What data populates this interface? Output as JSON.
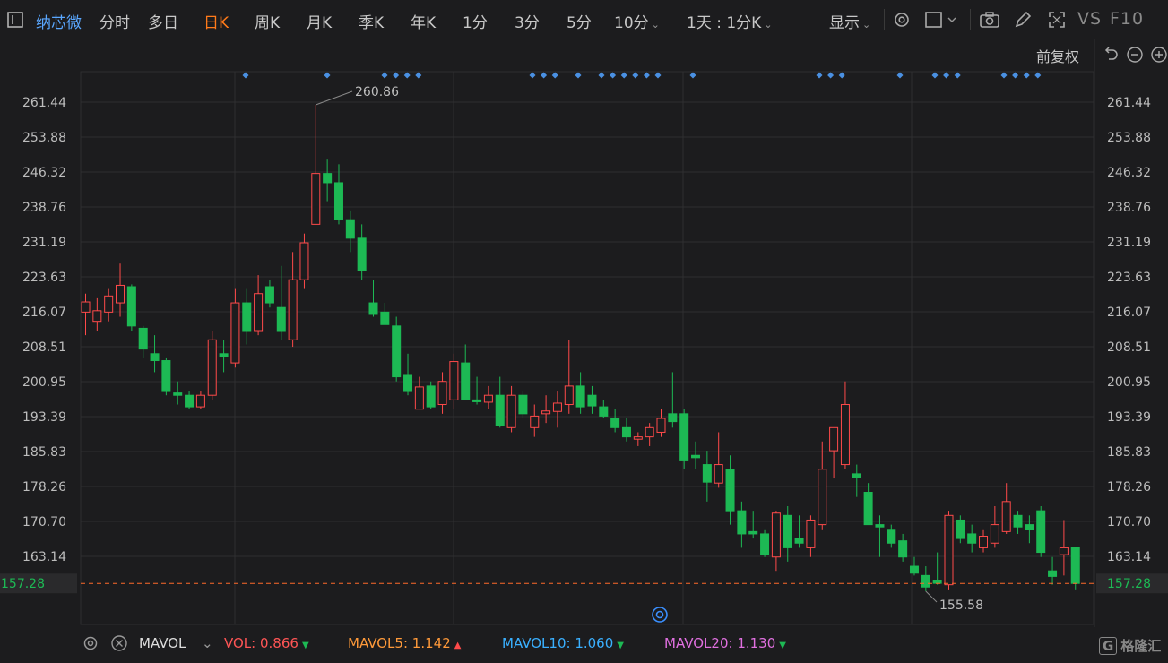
{
  "toolbar": {
    "stock_name": "纳芯微",
    "tabs": [
      "分时",
      "多日",
      "日K",
      "周K",
      "月K",
      "季K",
      "年K",
      "1分",
      "3分",
      "5分",
      "10分"
    ],
    "active_tab": "日K",
    "period_combo": "1天 : 1分K",
    "display_label": "显示",
    "vs_label": "VS",
    "f10_label": "F10"
  },
  "adjust_label": "前复权",
  "colors": {
    "up": "#ff4a4a",
    "down": "#1db954",
    "marker": "#4a90e2",
    "last": "#ff6a2a",
    "bg": "#1c1c1e",
    "grid": "#2e2e30"
  },
  "chart_data": {
    "type": "candlestick",
    "y_ticks": [
      261.44,
      253.88,
      246.32,
      238.76,
      231.19,
      223.63,
      216.07,
      208.51,
      200.95,
      193.39,
      185.83,
      178.26,
      170.7,
      163.14
    ],
    "ylim": [
      151.5,
      263.5
    ],
    "last_price": "157.28",
    "high_annotation": "260.86",
    "low_annotation": "155.58",
    "candles": [
      {
        "o": 216,
        "h": 220,
        "l": 211,
        "c": 218.2
      },
      {
        "o": 214,
        "h": 219,
        "l": 212,
        "c": 216.3
      },
      {
        "o": 216,
        "h": 221,
        "l": 214,
        "c": 219.5
      },
      {
        "o": 218,
        "h": 226.5,
        "l": 215,
        "c": 221.8
      },
      {
        "o": 221.5,
        "h": 222,
        "l": 212,
        "c": 213
      },
      {
        "o": 212.5,
        "h": 213,
        "l": 206,
        "c": 208
      },
      {
        "o": 207,
        "h": 211,
        "l": 203,
        "c": 205.5
      },
      {
        "o": 205.5,
        "h": 206,
        "l": 198,
        "c": 199
      },
      {
        "o": 198.5,
        "h": 201,
        "l": 196,
        "c": 198
      },
      {
        "o": 198,
        "h": 199,
        "l": 195,
        "c": 195.5
      },
      {
        "o": 195.5,
        "h": 199,
        "l": 195,
        "c": 198
      },
      {
        "o": 198,
        "h": 212,
        "l": 197,
        "c": 210
      },
      {
        "o": 207,
        "h": 210,
        "l": 203,
        "c": 206.3
      },
      {
        "o": 205,
        "h": 221,
        "l": 204,
        "c": 218
      },
      {
        "o": 218,
        "h": 221,
        "l": 209,
        "c": 212
      },
      {
        "o": 212,
        "h": 224,
        "l": 211,
        "c": 220
      },
      {
        "o": 221.5,
        "h": 223,
        "l": 217,
        "c": 218
      },
      {
        "o": 217,
        "h": 226,
        "l": 210,
        "c": 212
      },
      {
        "o": 210,
        "h": 229,
        "l": 208.5,
        "c": 223
      },
      {
        "o": 223,
        "h": 233,
        "l": 221,
        "c": 231
      },
      {
        "o": 235,
        "h": 260.86,
        "l": 235,
        "c": 246
      },
      {
        "o": 246,
        "h": 249,
        "l": 240,
        "c": 244
      },
      {
        "o": 244,
        "h": 248,
        "l": 235,
        "c": 236
      },
      {
        "o": 236,
        "h": 238,
        "l": 229,
        "c": 232
      },
      {
        "o": 232,
        "h": 235,
        "l": 223,
        "c": 225
      },
      {
        "o": 218,
        "h": 223,
        "l": 215,
        "c": 215.5
      },
      {
        "o": 216,
        "h": 218,
        "l": 214,
        "c": 213.3
      },
      {
        "o": 213,
        "h": 215,
        "l": 201,
        "c": 202
      },
      {
        "o": 202.5,
        "h": 207,
        "l": 198,
        "c": 199
      },
      {
        "o": 195,
        "h": 202,
        "l": 196,
        "c": 199.8
      },
      {
        "o": 200,
        "h": 201,
        "l": 195,
        "c": 195.5
      },
      {
        "o": 196,
        "h": 203,
        "l": 194,
        "c": 201
      },
      {
        "o": 197,
        "h": 207,
        "l": 195,
        "c": 205.3
      },
      {
        "o": 205,
        "h": 209,
        "l": 197,
        "c": 197
      },
      {
        "o": 197,
        "h": 202,
        "l": 196,
        "c": 196.6
      },
      {
        "o": 196.5,
        "h": 200,
        "l": 195,
        "c": 198
      },
      {
        "o": 198,
        "h": 202,
        "l": 191,
        "c": 191.5
      },
      {
        "o": 191,
        "h": 200,
        "l": 190,
        "c": 198
      },
      {
        "o": 198,
        "h": 199,
        "l": 193,
        "c": 194
      },
      {
        "o": 191,
        "h": 196,
        "l": 189,
        "c": 193.5
      },
      {
        "o": 194,
        "h": 198,
        "l": 192,
        "c": 194.6
      },
      {
        "o": 194.5,
        "h": 199,
        "l": 191,
        "c": 196.3
      },
      {
        "o": 196,
        "h": 210,
        "l": 194,
        "c": 200
      },
      {
        "o": 200,
        "h": 203,
        "l": 194,
        "c": 195.5
      },
      {
        "o": 198,
        "h": 200,
        "l": 194,
        "c": 195.7
      },
      {
        "o": 195.5,
        "h": 197,
        "l": 193,
        "c": 193.5
      },
      {
        "o": 193,
        "h": 195,
        "l": 190,
        "c": 191
      },
      {
        "o": 191,
        "h": 193,
        "l": 188,
        "c": 189
      },
      {
        "o": 188.5,
        "h": 190,
        "l": 187,
        "c": 189
      },
      {
        "o": 189,
        "h": 192,
        "l": 187,
        "c": 191
      },
      {
        "o": 190,
        "h": 195,
        "l": 189,
        "c": 193
      },
      {
        "o": 194,
        "h": 203,
        "l": 191,
        "c": 192.3
      },
      {
        "o": 194,
        "h": 195,
        "l": 182,
        "c": 184
      },
      {
        "o": 185,
        "h": 188,
        "l": 182,
        "c": 184.5
      },
      {
        "o": 183,
        "h": 186,
        "l": 175,
        "c": 179.2
      },
      {
        "o": 179,
        "h": 190,
        "l": 178,
        "c": 183
      },
      {
        "o": 182,
        "h": 185,
        "l": 170,
        "c": 173
      },
      {
        "o": 173,
        "h": 175,
        "l": 165,
        "c": 168
      },
      {
        "o": 168.5,
        "h": 173,
        "l": 167,
        "c": 168
      },
      {
        "o": 168,
        "h": 169,
        "l": 163,
        "c": 163.5
      },
      {
        "o": 163,
        "h": 173,
        "l": 160,
        "c": 172.5
      },
      {
        "o": 172,
        "h": 174,
        "l": 162,
        "c": 165
      },
      {
        "o": 167,
        "h": 172,
        "l": 165,
        "c": 166
      },
      {
        "o": 165,
        "h": 172,
        "l": 163,
        "c": 171
      },
      {
        "o": 170,
        "h": 188,
        "l": 169,
        "c": 182
      },
      {
        "o": 186,
        "h": 191,
        "l": 180,
        "c": 191
      },
      {
        "o": 183,
        "h": 201,
        "l": 182,
        "c": 196
      },
      {
        "o": 181,
        "h": 183,
        "l": 176,
        "c": 180.3
      },
      {
        "o": 177,
        "h": 179,
        "l": 170,
        "c": 170
      },
      {
        "o": 170,
        "h": 172,
        "l": 163,
        "c": 169.5
      },
      {
        "o": 169,
        "h": 170,
        "l": 165,
        "c": 166
      },
      {
        "o": 166.5,
        "h": 168,
        "l": 162,
        "c": 163
      },
      {
        "o": 161,
        "h": 163,
        "l": 159,
        "c": 159.5
      },
      {
        "o": 159,
        "h": 161,
        "l": 155.58,
        "c": 156.5
      },
      {
        "o": 158,
        "h": 164,
        "l": 157,
        "c": 157.3
      },
      {
        "o": 157,
        "h": 173,
        "l": 156,
        "c": 172
      },
      {
        "o": 171,
        "h": 172,
        "l": 166,
        "c": 167
      },
      {
        "o": 168,
        "h": 170,
        "l": 164,
        "c": 166
      },
      {
        "o": 165,
        "h": 169,
        "l": 164,
        "c": 167.5
      },
      {
        "o": 166,
        "h": 174,
        "l": 165,
        "c": 170
      },
      {
        "o": 168.5,
        "h": 179,
        "l": 168,
        "c": 175
      },
      {
        "o": 172,
        "h": 173,
        "l": 168,
        "c": 169.5
      },
      {
        "o": 170,
        "h": 172,
        "l": 166,
        "c": 169
      },
      {
        "o": 173,
        "h": 174,
        "l": 163,
        "c": 164
      },
      {
        "o": 160,
        "h": 163,
        "l": 157,
        "c": 158.8
      },
      {
        "o": 163.5,
        "h": 171,
        "l": 159,
        "c": 165
      },
      {
        "o": 165,
        "h": 165,
        "l": 156,
        "c": 157.28
      }
    ],
    "marker_groups": [
      [
        0,
        0
      ],
      [
        1,
        0
      ],
      [
        2,
        0
      ],
      [
        2,
        1
      ],
      [
        2,
        2
      ],
      [
        2,
        3
      ],
      [
        3,
        0
      ],
      [
        3,
        1
      ],
      [
        3,
        2
      ],
      [
        4,
        0
      ],
      [
        5,
        0
      ],
      [
        5,
        1
      ],
      [
        5,
        2
      ],
      [
        5,
        3
      ],
      [
        5,
        4
      ],
      [
        5,
        5
      ],
      [
        6,
        0
      ],
      [
        7,
        0
      ],
      [
        7,
        1
      ],
      [
        7,
        2
      ],
      [
        8,
        0
      ],
      [
        9,
        0
      ],
      [
        9,
        1
      ],
      [
        9,
        2
      ],
      [
        10,
        0
      ],
      [
        10,
        1
      ],
      [
        10,
        2
      ],
      [
        10,
        3
      ]
    ]
  },
  "indicator": {
    "name": "MAVOL",
    "vol_label": "VOL:",
    "vol_value": "0.866",
    "ma5_label": "MAVOL5:",
    "ma5_value": "1.142",
    "ma10_label": "MAVOL10:",
    "ma10_value": "1.060",
    "ma20_label": "MAVOL20:",
    "ma20_value": "1.130"
  },
  "watermark": "格隆汇"
}
